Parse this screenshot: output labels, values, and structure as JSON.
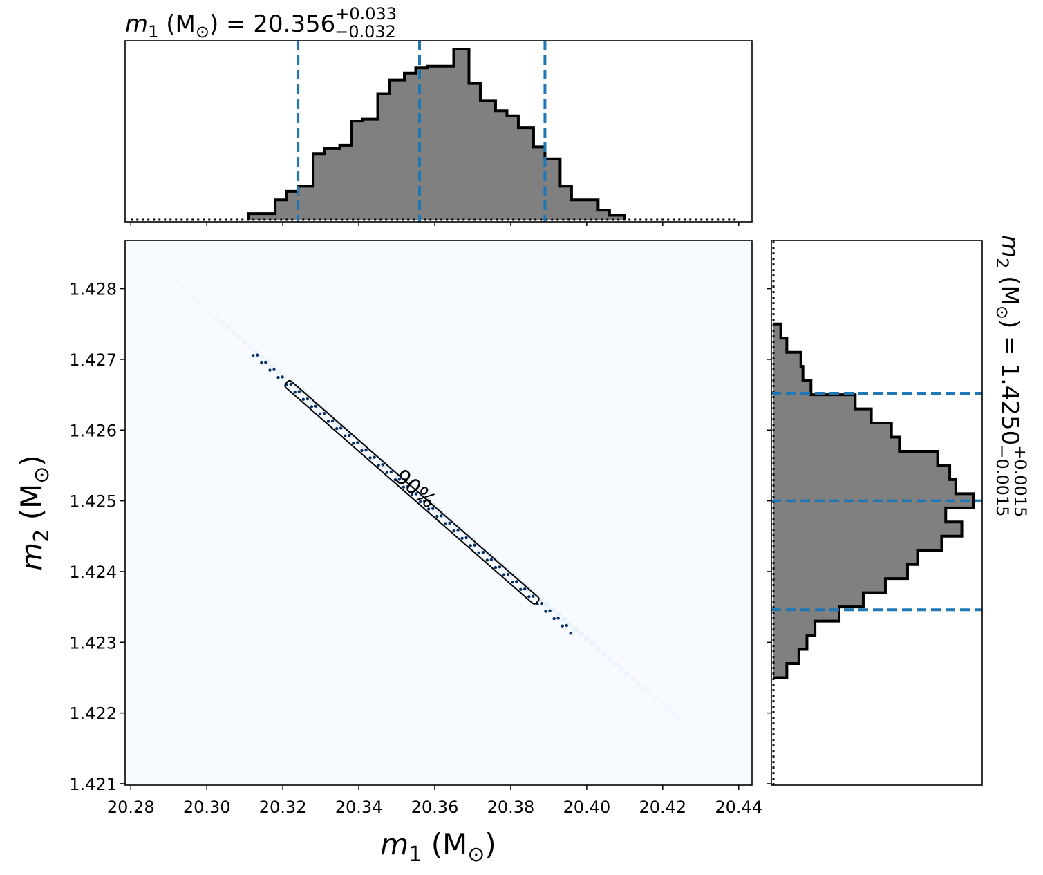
{
  "chart_data": {
    "type": "corner",
    "top_marginal": {
      "type": "histogram",
      "title": {
        "prefix": "m",
        "sub": "1",
        "unit": " (M",
        "unit_sub": "⊙",
        "close": ") = 20.356",
        "plus": "+0.033",
        "minus": "−0.032"
      },
      "median": 20.356,
      "lower": 20.324,
      "upper": 20.389,
      "bin_edges": [
        20.311,
        20.318,
        20.321,
        20.324,
        20.328,
        20.331,
        20.335,
        20.338,
        20.341,
        20.345,
        20.348,
        20.352,
        20.355,
        20.358,
        20.362,
        20.365,
        20.369,
        20.372,
        20.376,
        20.379,
        20.382,
        20.386,
        20.389,
        20.393,
        20.396,
        20.403,
        20.406,
        20.41
      ],
      "counts": [
        0.04,
        0.12,
        0.17,
        0.2,
        0.39,
        0.42,
        0.44,
        0.58,
        0.59,
        0.74,
        0.82,
        0.86,
        0.89,
        0.9,
        0.9,
        1.0,
        0.8,
        0.7,
        0.64,
        0.61,
        0.54,
        0.43,
        0.36,
        0.2,
        0.12,
        0.06,
        0.03
      ],
      "tail_x": [
        20.28,
        20.44
      ]
    },
    "right_marginal": {
      "type": "histogram",
      "orientation": "horizontal",
      "title": {
        "prefix": "m",
        "sub": "2",
        "unit": " (M",
        "unit_sub": "⊙",
        "close": ") = 1.4250",
        "plus": "+0.0015",
        "minus": "−0.0015"
      },
      "median": 1.425,
      "lower": 1.42346,
      "upper": 1.42652,
      "bin_edges": [
        1.4225,
        1.4227,
        1.4229,
        1.4231,
        1.4233,
        1.4235,
        1.4237,
        1.4239,
        1.4241,
        1.4243,
        1.4245,
        1.4247,
        1.4249,
        1.4251,
        1.4253,
        1.4255,
        1.4257,
        1.4259,
        1.4261,
        1.4263,
        1.4265,
        1.4267,
        1.4269,
        1.4271,
        1.4273,
        1.4275
      ],
      "counts": [
        0.07,
        0.13,
        0.17,
        0.21,
        0.33,
        0.45,
        0.56,
        0.67,
        0.72,
        0.84,
        0.94,
        0.86,
        1.0,
        0.91,
        0.88,
        0.82,
        0.63,
        0.59,
        0.49,
        0.41,
        0.19,
        0.15,
        0.14,
        0.07,
        0.04
      ],
      "tail_y": [
        1.4209,
        1.4287
      ]
    },
    "joint": {
      "type": "heatmap",
      "xlabel": {
        "prefix": "m",
        "sub": "1",
        "rest": " (M",
        "unit_sub": "⊙",
        "close": ")"
      },
      "ylabel": {
        "prefix": "m",
        "sub": "2",
        "rest": " (M",
        "unit_sub": "⊙",
        "close": ")"
      },
      "xlim": [
        20.2785,
        20.4435
      ],
      "ylim": [
        1.42098,
        1.42868
      ],
      "xticks": [
        "20.28",
        "20.30",
        "20.32",
        "20.34",
        "20.36",
        "20.38",
        "20.40",
        "20.42",
        "20.44"
      ],
      "yticks": [
        "1.421",
        "1.422",
        "1.423",
        "1.424",
        "1.425",
        "1.426",
        "1.427",
        "1.428"
      ],
      "ridge_start": [
        20.292,
        1.42808
      ],
      "ridge_end": [
        20.427,
        1.42178
      ],
      "contour_start": [
        20.321,
        1.42667
      ],
      "contour_end": [
        20.387,
        1.42357
      ],
      "contour_label": "90%",
      "colors": {
        "background": "#f7fbff",
        "ridge": "#dbe9f6",
        "contour": "#000000",
        "samples": "#08306b"
      }
    },
    "colors": {
      "hist_fill": "#808080",
      "hist_edge": "#000000",
      "quantile": "#1f77b4"
    }
  }
}
